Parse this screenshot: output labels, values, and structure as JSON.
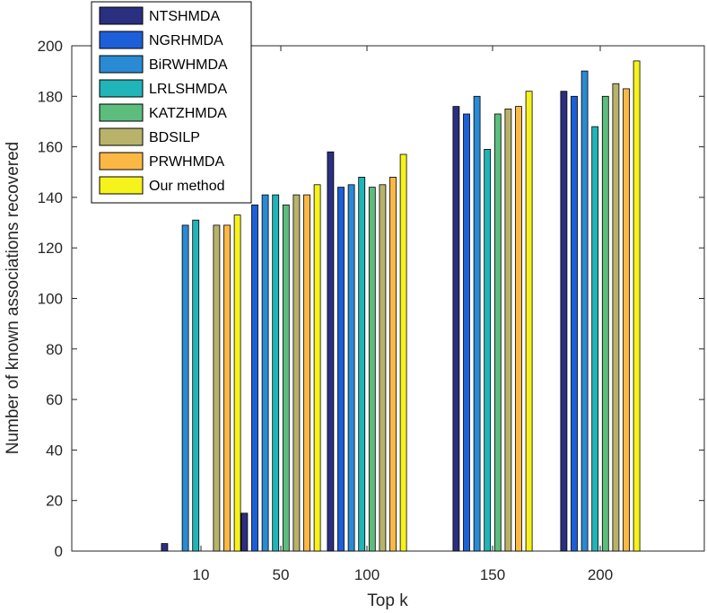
{
  "chart_data": {
    "type": "bar",
    "title": "",
    "xlabel": "Top k",
    "ylabel": "Number of known associations recovered",
    "categories": [
      "10",
      "50",
      "100",
      "150",
      "200"
    ],
    "ylim": [
      0,
      200
    ],
    "yticks": [
      0,
      20,
      40,
      60,
      80,
      100,
      120,
      140,
      160,
      180,
      200
    ],
    "grid": false,
    "legend_position": "top-left",
    "series": [
      {
        "name": "NTSHMDA",
        "color": "#2b2f80",
        "values": [
          3,
          15,
          158,
          176,
          182
        ]
      },
      {
        "name": "NGRHMDA",
        "color": "#1c5fd8",
        "values": [
          0,
          137,
          144,
          173,
          180
        ]
      },
      {
        "name": "BiRWHMDA",
        "color": "#2a8ad3",
        "values": [
          129,
          141,
          145,
          180,
          190
        ]
      },
      {
        "name": "LRLSHMDA",
        "color": "#1fb5b9",
        "values": [
          131,
          141,
          148,
          159,
          168
        ]
      },
      {
        "name": "KATZHMDA",
        "color": "#5cbd7d",
        "values": [
          0,
          137,
          144,
          173,
          180
        ]
      },
      {
        "name": "BDSILP",
        "color": "#b9b36a",
        "values": [
          129,
          141,
          145,
          175,
          185
        ]
      },
      {
        "name": "PRWHMDA",
        "color": "#fbb845",
        "values": [
          129,
          141,
          148,
          176,
          183
        ]
      },
      {
        "name": "Our method",
        "color": "#f6f21c",
        "values": [
          133,
          145,
          157,
          182,
          194
        ]
      }
    ]
  }
}
